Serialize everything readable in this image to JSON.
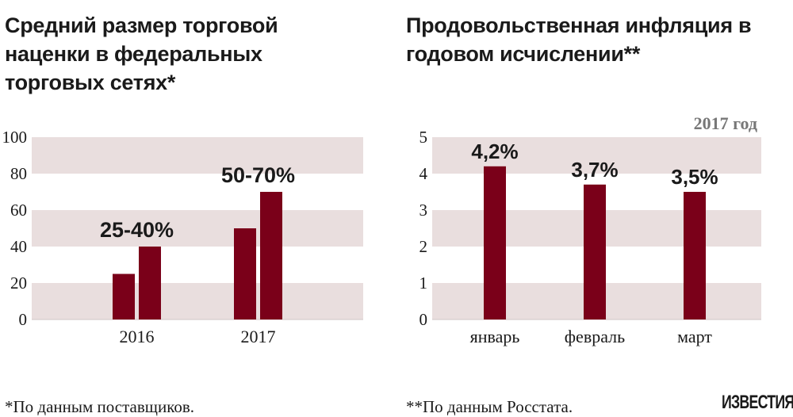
{
  "colors": {
    "bar": "#7a0019",
    "band": "#e9dede",
    "text": "#1a1a1a",
    "year_label": "#777777"
  },
  "chart_data": [
    {
      "type": "bar",
      "title": "Средний размер торговой наценки в федеральных торговых сетях*",
      "categories": [
        "2016",
        "2017"
      ],
      "series": [
        {
          "values": [
            25,
            50
          ]
        },
        {
          "values": [
            40,
            70
          ]
        }
      ],
      "data_labels": [
        "25-40%",
        "50-70%"
      ],
      "y_ticks": [
        "0",
        "20",
        "40",
        "60",
        "80",
        "100"
      ],
      "ylim": [
        0,
        100
      ],
      "grid": "alternating bands",
      "footnote": "*По данным поставщиков."
    },
    {
      "type": "bar",
      "title": "Продовольственная инфляция в годовом исчислении**",
      "subtitle": "2017 год",
      "categories": [
        "январь",
        "февраль",
        "март"
      ],
      "values": [
        4.2,
        3.7,
        3.5
      ],
      "data_labels": [
        "4,2%",
        "3,7%",
        "3,5%"
      ],
      "y_ticks": [
        "0",
        "1",
        "2",
        "3",
        "4",
        "5"
      ],
      "ylim": [
        0,
        5
      ],
      "grid": "alternating bands",
      "footnote": "**По данным Росстата."
    }
  ],
  "logo": "ИЗВЕСТИЯ"
}
